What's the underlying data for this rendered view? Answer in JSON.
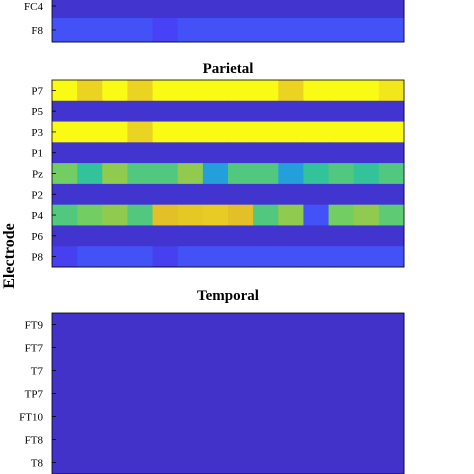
{
  "ylabel": "Electrode",
  "chart_data": [
    {
      "type": "heatmap",
      "title": "",
      "rows": [
        "FC4",
        "F8"
      ],
      "values": [
        [
          0.08,
          0.08,
          0.08,
          0.08,
          0.08,
          0.08,
          0.08,
          0.08,
          0.08,
          0.08,
          0.08,
          0.08,
          0.08,
          0.08
        ],
        [
          0.2,
          0.2,
          0.2,
          0.2,
          0.16,
          0.2,
          0.2,
          0.2,
          0.2,
          0.2,
          0.2,
          0.2,
          0.2,
          0.2
        ]
      ]
    },
    {
      "type": "heatmap",
      "title": "Parietal",
      "rows": [
        "P7",
        "P5",
        "P3",
        "P1",
        "Pz",
        "P2",
        "P4",
        "P6",
        "P8"
      ],
      "values": [
        [
          1.0,
          0.9,
          1.0,
          0.9,
          1.0,
          1.0,
          1.0,
          1.0,
          1.0,
          0.9,
          1.0,
          1.0,
          1.0,
          0.95
        ],
        [
          0.08,
          0.08,
          0.08,
          0.08,
          0.08,
          0.08,
          0.08,
          0.08,
          0.08,
          0.08,
          0.08,
          0.08,
          0.08,
          0.08
        ],
        [
          1.0,
          1.0,
          1.0,
          0.9,
          1.0,
          1.0,
          1.0,
          1.0,
          1.0,
          1.0,
          1.0,
          1.0,
          1.0,
          1.0
        ],
        [
          0.08,
          0.08,
          0.08,
          0.08,
          0.08,
          0.08,
          0.08,
          0.08,
          0.08,
          0.08,
          0.08,
          0.08,
          0.08,
          0.08
        ],
        [
          0.65,
          0.55,
          0.7,
          0.6,
          0.6,
          0.7,
          0.4,
          0.6,
          0.6,
          0.4,
          0.55,
          0.6,
          0.55,
          0.6
        ],
        [
          0.08,
          0.08,
          0.08,
          0.08,
          0.08,
          0.08,
          0.08,
          0.08,
          0.08,
          0.08,
          0.08,
          0.08,
          0.08,
          0.08
        ],
        [
          0.6,
          0.65,
          0.7,
          0.6,
          0.85,
          0.87,
          0.88,
          0.85,
          0.6,
          0.7,
          0.2,
          0.65,
          0.7,
          0.62
        ],
        [
          0.08,
          0.08,
          0.08,
          0.08,
          0.08,
          0.08,
          0.08,
          0.08,
          0.08,
          0.08,
          0.08,
          0.08,
          0.08,
          0.08
        ],
        [
          0.15,
          0.2,
          0.2,
          0.2,
          0.15,
          0.2,
          0.2,
          0.2,
          0.2,
          0.2,
          0.2,
          0.2,
          0.2,
          0.2
        ]
      ]
    },
    {
      "type": "heatmap",
      "title": "Temporal",
      "rows": [
        "FT9",
        "FT7",
        "T7",
        "TP7",
        "FT10",
        "FT8",
        "T8"
      ],
      "values": [
        [
          0.07,
          0.07,
          0.07,
          0.07,
          0.07,
          0.07,
          0.07,
          0.07,
          0.07,
          0.07,
          0.07,
          0.07,
          0.07,
          0.07
        ],
        [
          0.07,
          0.07,
          0.07,
          0.07,
          0.07,
          0.07,
          0.07,
          0.07,
          0.07,
          0.07,
          0.07,
          0.07,
          0.07,
          0.07
        ],
        [
          0.07,
          0.07,
          0.07,
          0.07,
          0.07,
          0.07,
          0.07,
          0.07,
          0.07,
          0.07,
          0.07,
          0.07,
          0.07,
          0.07
        ],
        [
          0.07,
          0.07,
          0.07,
          0.07,
          0.07,
          0.07,
          0.07,
          0.07,
          0.07,
          0.07,
          0.07,
          0.07,
          0.07,
          0.07
        ],
        [
          0.07,
          0.07,
          0.07,
          0.07,
          0.07,
          0.07,
          0.07,
          0.07,
          0.07,
          0.07,
          0.07,
          0.07,
          0.07,
          0.07
        ],
        [
          0.07,
          0.07,
          0.07,
          0.07,
          0.07,
          0.07,
          0.07,
          0.07,
          0.07,
          0.07,
          0.07,
          0.07,
          0.07,
          0.07
        ],
        [
          0.07,
          0.07,
          0.07,
          0.07,
          0.07,
          0.07,
          0.07,
          0.07,
          0.07,
          0.07,
          0.07,
          0.07,
          0.07,
          0.07
        ]
      ]
    }
  ],
  "colormap": [
    "#3e26a8",
    "#4743f8",
    "#2d8cf3",
    "#13beb8",
    "#7ccf59",
    "#e1b92a",
    "#f9fb15"
  ]
}
